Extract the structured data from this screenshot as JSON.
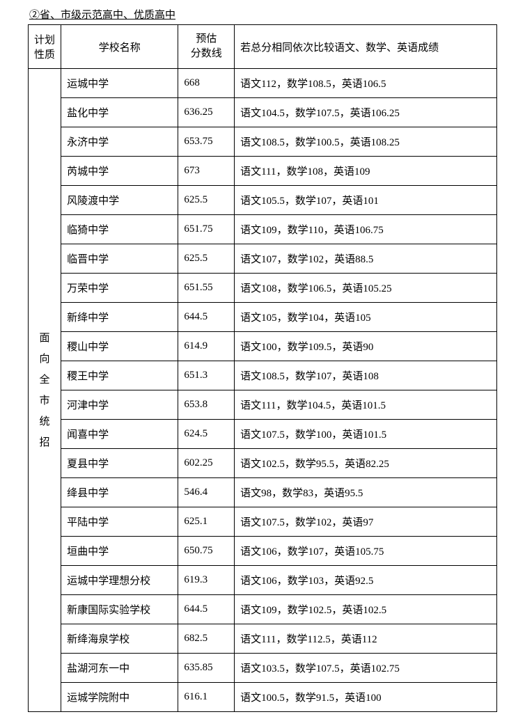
{
  "heading": "②省、市级示范高中、优质高中",
  "columns": {
    "plan": "计划\n性质",
    "school": "学校名称",
    "score": "预估\n分数线",
    "tiebreak": "若总分相同依次比较语文、数学、英语成绩"
  },
  "plan_label": "面\n向\n全\n市\n统\n招",
  "rows": [
    {
      "school": "运城中学",
      "score": "668",
      "tiebreak": "语文112，数学108.5，英语106.5"
    },
    {
      "school": "盐化中学",
      "score": "636.25",
      "tiebreak": "语文104.5，数学107.5，英语106.25"
    },
    {
      "school": "永济中学",
      "score": "653.75",
      "tiebreak": "语文108.5，数学100.5，英语108.25"
    },
    {
      "school": "芮城中学",
      "score": "673",
      "tiebreak": "语文111，数学108，英语109"
    },
    {
      "school": "风陵渡中学",
      "score": "625.5",
      "tiebreak": "语文105.5，数学107，英语101"
    },
    {
      "school": "临猗中学",
      "score": "651.75",
      "tiebreak": "语文109，数学110，英语106.75"
    },
    {
      "school": "临晋中学",
      "score": "625.5",
      "tiebreak": "语文107，数学102，英语88.5"
    },
    {
      "school": "万荣中学",
      "score": "651.55",
      "tiebreak": "语文108，数学106.5，英语105.25"
    },
    {
      "school": "新绛中学",
      "score": "644.5",
      "tiebreak": "语文105，数学104，英语105"
    },
    {
      "school": "稷山中学",
      "score": "614.9",
      "tiebreak": "语文100，数学109.5，英语90"
    },
    {
      "school": "稷王中学",
      "score": "651.3",
      "tiebreak": "语文108.5，数学107，英语108"
    },
    {
      "school": "河津中学",
      "score": "653.8",
      "tiebreak": "语文111，数学104.5，英语101.5"
    },
    {
      "school": "闻喜中学",
      "score": "624.5",
      "tiebreak": "语文107.5，数学100，英语101.5"
    },
    {
      "school": "夏县中学",
      "score": "602.25",
      "tiebreak": "语文102.5，数学95.5，英语82.25"
    },
    {
      "school": "绛县中学",
      "score": "546.4",
      "tiebreak": "语文98，数学83，英语95.5"
    },
    {
      "school": "平陆中学",
      "score": "625.1",
      "tiebreak": "语文107.5，数学102，英语97"
    },
    {
      "school": "垣曲中学",
      "score": "650.75",
      "tiebreak": "语文106，数学107，英语105.75"
    },
    {
      "school": "运城中学理想分校",
      "score": "619.3",
      "tiebreak": "语文106，数学103，英语92.5"
    },
    {
      "school": "新康国际实验学校",
      "score": "644.5",
      "tiebreak": "语文109，数学102.5，英语102.5"
    },
    {
      "school": "新绛海泉学校",
      "score": "682.5",
      "tiebreak": "语文111，数学112.5，英语112"
    },
    {
      "school": "盐湖河东一中",
      "score": "635.85",
      "tiebreak": "语文103.5，数学107.5，英语102.75"
    },
    {
      "school": "运城学院附中",
      "score": "616.1",
      "tiebreak": "语文100.5，数学91.5，英语100"
    }
  ]
}
